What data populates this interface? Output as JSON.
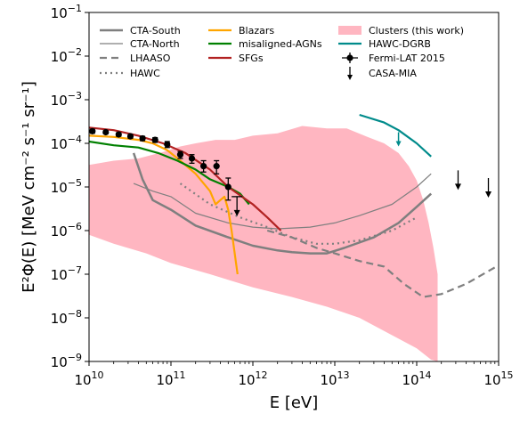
{
  "chart_data": {
    "type": "line",
    "xlabel": "E [eV]",
    "ylabel": "E²Φ(E) [MeV cm⁻² s⁻¹ sr⁻¹]",
    "xscale": "log",
    "yscale": "log",
    "xlim": [
      10000000000.0,
      1000000000000000.0
    ],
    "ylim": [
      1e-09,
      0.1
    ],
    "x_ticks": [
      {
        "value": 10000000000.0,
        "base": "10",
        "exp": "10"
      },
      {
        "value": 100000000000.0,
        "base": "10",
        "exp": "11"
      },
      {
        "value": 1000000000000.0,
        "base": "10",
        "exp": "12"
      },
      {
        "value": 10000000000000.0,
        "base": "10",
        "exp": "13"
      },
      {
        "value": 100000000000000.0,
        "base": "10",
        "exp": "14"
      },
      {
        "value": 1000000000000000.0,
        "base": "10",
        "exp": "15"
      }
    ],
    "y_ticks": [
      {
        "value": 1e-09,
        "base": "10",
        "exp": "−9"
      },
      {
        "value": 1e-08,
        "base": "10",
        "exp": "−8"
      },
      {
        "value": 1e-07,
        "base": "10",
        "exp": "−7"
      },
      {
        "value": 1e-06,
        "base": "10",
        "exp": "−6"
      },
      {
        "value": 1e-05,
        "base": "10",
        "exp": "−5"
      },
      {
        "value": 0.0001,
        "base": "10",
        "exp": "−4"
      },
      {
        "value": 0.001,
        "base": "10",
        "exp": "−3"
      },
      {
        "value": 0.01,
        "base": "10",
        "exp": "−2"
      },
      {
        "value": 0.1,
        "base": "10",
        "exp": "−1"
      }
    ],
    "legend_position": "top",
    "band": {
      "name": "Clusters (this work)",
      "color": "#ffb6c1",
      "upper": [
        [
          10000000000.0,
          3.2e-05
        ],
        [
          20000000000.0,
          4e-05
        ],
        [
          40000000000.0,
          4.5e-05
        ],
        [
          80000000000.0,
          6.3e-05
        ],
        [
          130000000000.0,
          8.5e-05
        ],
        [
          200000000000.0,
          0.0001
        ],
        [
          350000000000.0,
          0.00012
        ],
        [
          600000000000.0,
          0.00012
        ],
        [
          1000000000000.0,
          0.00015
        ],
        [
          2000000000000.0,
          0.00017
        ],
        [
          4000000000000.0,
          0.00025
        ],
        [
          8000000000000.0,
          0.00022
        ],
        [
          14000000000000.0,
          0.00022
        ],
        [
          25000000000000.0,
          0.00014
        ],
        [
          40000000000000.0,
          0.0001
        ],
        [
          60000000000000.0,
          6e-05
        ],
        [
          80000000000000.0,
          3e-05
        ],
        [
          100000000000000.0,
          1.4e-05
        ],
        [
          120000000000000.0,
          5e-06
        ],
        [
          140000000000000.0,
          1.5e-06
        ],
        [
          160000000000000.0,
          4e-07
        ],
        [
          180000000000000.0,
          1e-07
        ]
      ],
      "lower": [
        [
          10000000000.0,
          8e-07
        ],
        [
          20000000000.0,
          5e-07
        ],
        [
          50000000000.0,
          3e-07
        ],
        [
          100000000000.0,
          1.8e-07
        ],
        [
          300000000000.0,
          1e-07
        ],
        [
          1000000000000.0,
          5e-08
        ],
        [
          3000000000000.0,
          3e-08
        ],
        [
          8000000000000.0,
          1.8e-08
        ],
        [
          20000000000000.0,
          1e-08
        ],
        [
          50000000000000.0,
          4e-09
        ],
        [
          100000000000000.0,
          2e-09
        ],
        [
          150000000000000.0,
          1.1e-09
        ],
        [
          180000000000000.0,
          1e-09
        ]
      ]
    },
    "series": [
      {
        "name": "CTA-South",
        "color": "#7f7f7f",
        "width": 2.5,
        "dash": "",
        "points": [
          [
            35000000000.0,
            6e-05
          ],
          [
            45000000000.0,
            1.5e-05
          ],
          [
            60000000000.0,
            5e-06
          ],
          [
            100000000000.0,
            3e-06
          ],
          [
            200000000000.0,
            1.3e-06
          ],
          [
            500000000000.0,
            7e-07
          ],
          [
            1000000000000.0,
            4.5e-07
          ],
          [
            2000000000000.0,
            3.5e-07
          ],
          [
            3000000000000.0,
            3.2e-07
          ],
          [
            5000000000000.0,
            3e-07
          ],
          [
            8000000000000.0,
            3e-07
          ],
          [
            13000000000000.0,
            4e-07
          ],
          [
            30000000000000.0,
            7e-07
          ],
          [
            60000000000000.0,
            1.5e-06
          ],
          [
            100000000000000.0,
            3.5e-06
          ],
          [
            150000000000000.0,
            7e-06
          ]
        ]
      },
      {
        "name": "CTA-North",
        "color": "#7f7f7f",
        "width": 1.2,
        "dash": "",
        "points": [
          [
            35000000000.0,
            1.2e-05
          ],
          [
            60000000000.0,
            8e-06
          ],
          [
            100000000000.0,
            6e-06
          ],
          [
            200000000000.0,
            2.5e-06
          ],
          [
            500000000000.0,
            1.5e-06
          ],
          [
            1000000000000.0,
            1.2e-06
          ],
          [
            2000000000000.0,
            1.1e-06
          ],
          [
            5000000000000.0,
            1.2e-06
          ],
          [
            10000000000000.0,
            1.5e-06
          ],
          [
            20000000000000.0,
            2.2e-06
          ],
          [
            50000000000000.0,
            4e-06
          ],
          [
            100000000000000.0,
            1e-05
          ],
          [
            150000000000000.0,
            2e-05
          ]
        ]
      },
      {
        "name": "LHAASO",
        "color": "#7f7f7f",
        "width": 2.2,
        "dash": "8,5",
        "points": [
          [
            1500000000000.0,
            1e-06
          ],
          [
            3000000000000.0,
            7e-07
          ],
          [
            6000000000000.0,
            4e-07
          ],
          [
            10000000000000.0,
            3e-07
          ],
          [
            20000000000000.0,
            2e-07
          ],
          [
            40000000000000.0,
            1.5e-07
          ],
          [
            70000000000000.0,
            6e-08
          ],
          [
            120000000000000.0,
            3e-08
          ],
          [
            200000000000000.0,
            3.5e-08
          ],
          [
            400000000000000.0,
            6e-08
          ],
          [
            1000000000000000.0,
            1.6e-07
          ]
        ]
      },
      {
        "name": "HAWC",
        "color": "#7f7f7f",
        "width": 2.2,
        "dash": "2,4",
        "points": [
          [
            130000000000.0,
            1.2e-05
          ],
          [
            300000000000.0,
            4e-06
          ],
          [
            700000000000.0,
            2e-06
          ],
          [
            1500000000000.0,
            1.2e-06
          ],
          [
            3000000000000.0,
            7e-07
          ],
          [
            6000000000000.0,
            5e-07
          ],
          [
            10000000000000.0,
            5e-07
          ],
          [
            20000000000000.0,
            6e-07
          ],
          [
            50000000000000.0,
            1e-06
          ],
          [
            100000000000000.0,
            2e-06
          ]
        ]
      },
      {
        "name": "Blazars",
        "color": "#ffa500",
        "width": 2.2,
        "dash": "",
        "points": [
          [
            10000000000.0,
            0.00015
          ],
          [
            20000000000.0,
            0.00014
          ],
          [
            40000000000.0,
            0.00012
          ],
          [
            60000000000.0,
            0.0001
          ],
          [
            90000000000.0,
            7e-05
          ],
          [
            130000000000.0,
            4e-05
          ],
          [
            200000000000.0,
            2e-05
          ],
          [
            300000000000.0,
            8e-06
          ],
          [
            350000000000.0,
            4e-06
          ],
          [
            400000000000.0,
            5e-06
          ],
          [
            450000000000.0,
            6e-06
          ],
          [
            500000000000.0,
            3e-06
          ],
          [
            550000000000.0,
            1e-06
          ],
          [
            600000000000.0,
            3e-07
          ],
          [
            650000000000.0,
            1e-07
          ]
        ]
      },
      {
        "name": "misaligned-AGNs",
        "color": "#008000",
        "width": 2.2,
        "dash": "",
        "points": [
          [
            10000000000.0,
            0.00011
          ],
          [
            20000000000.0,
            9e-05
          ],
          [
            40000000000.0,
            8e-05
          ],
          [
            70000000000.0,
            6e-05
          ],
          [
            120000000000.0,
            4e-05
          ],
          [
            200000000000.0,
            2.5e-05
          ],
          [
            300000000000.0,
            1.5e-05
          ],
          [
            500000000000.0,
            1e-05
          ],
          [
            700000000000.0,
            7e-06
          ],
          [
            900000000000.0,
            4e-06
          ]
        ]
      },
      {
        "name": "SFGs",
        "color": "#b22222",
        "width": 2.2,
        "dash": "",
        "points": [
          [
            10000000000.0,
            0.00023
          ],
          [
            20000000000.0,
            0.0002
          ],
          [
            40000000000.0,
            0.00015
          ],
          [
            80000000000.0,
            0.0001
          ],
          [
            150000000000.0,
            6e-05
          ],
          [
            300000000000.0,
            2.5e-05
          ],
          [
            500000000000.0,
            1e-05
          ],
          [
            1000000000000.0,
            4e-06
          ],
          [
            1500000000000.0,
            2e-06
          ],
          [
            2200000000000.0,
            1e-06
          ]
        ]
      },
      {
        "name": "HAWC-DGRB",
        "color": "#008b8b",
        "width": 2.2,
        "dash": "",
        "points": [
          [
            20000000000000.0,
            0.00045
          ],
          [
            40000000000000.0,
            0.0003
          ],
          [
            60000000000000.0,
            0.0002
          ],
          [
            100000000000000.0,
            0.0001
          ],
          [
            150000000000000.0,
            5e-05
          ]
        ]
      }
    ],
    "fermi": {
      "name": "Fermi-LAT 2015",
      "points": [
        [
          11000000000.0,
          0.00019
        ],
        [
          16000000000.0,
          0.00018
        ],
        [
          23000000000.0,
          0.00016
        ],
        [
          32000000000.0,
          0.000145
        ],
        [
          45000000000.0,
          0.00013
        ],
        [
          64000000000.0,
          0.00012
        ],
        [
          90000000000.0,
          9.5e-05
        ],
        [
          130000000000.0,
          5.5e-05
        ],
        [
          180000000000.0,
          4.5e-05
        ],
        [
          250000000000.0,
          3e-05
        ],
        [
          360000000000.0,
          3e-05
        ],
        [
          500000000000.0,
          1e-05
        ]
      ],
      "errors": [
        [
          0.00017,
          0.00021
        ],
        [
          0.000165,
          0.000195
        ],
        [
          0.000145,
          0.000175
        ],
        [
          0.00013,
          0.00016
        ],
        [
          0.000115,
          0.000145
        ],
        [
          0.000105,
          0.000135
        ],
        [
          8e-05,
          0.00011
        ],
        [
          4.5e-05,
          6.5e-05
        ],
        [
          3.5e-05,
          5.5e-05
        ],
        [
          2.2e-05,
          4e-05
        ],
        [
          2e-05,
          4e-05
        ],
        [
          5e-06,
          1.6e-05
        ]
      ]
    },
    "fermi_upper_limit": {
      "x": 640000000000.0,
      "y": 6e-06
    },
    "hawc_dgrb_arrow": {
      "x": 60000000000000.0,
      "y": 0.00018
    },
    "casa_mia": {
      "name": "CASA-MIA",
      "points": [
        [
          320000000000000.0,
          1.5e-05
        ],
        [
          750000000000000.0,
          1e-05
        ]
      ]
    }
  }
}
